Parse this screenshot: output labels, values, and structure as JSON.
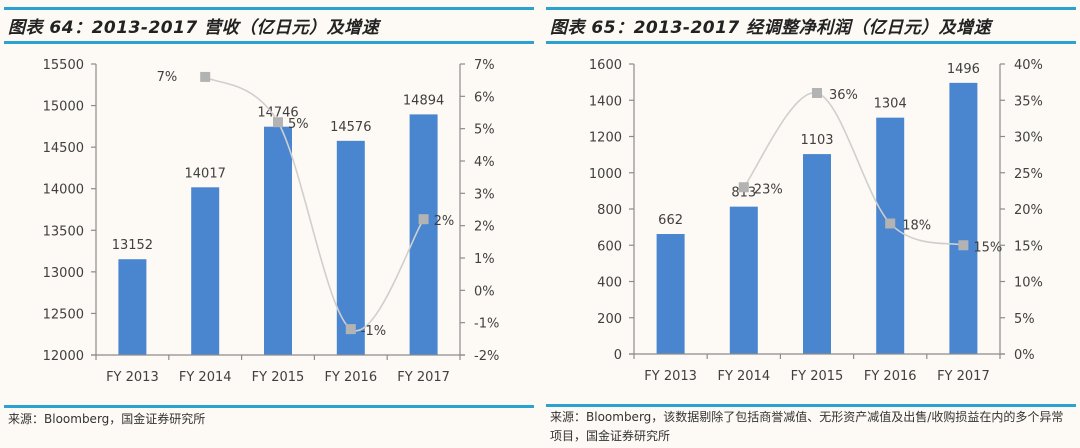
{
  "figures": [
    {
      "title": "图表 64：2013-2017 营收（亿日元）及增速",
      "source": "来源：Bloomberg，国金证券研究所"
    },
    {
      "title": "图表 65：2013-2017 经调整净利润（亿日元）及增速",
      "source": "来源：Bloomberg，该数据剔除了包括商誉减值、无形资产减值及出售/收购损益在内的多个异常项目，国金证券研究所"
    }
  ],
  "colors": {
    "bar": "#4a86d0",
    "line": "#cfcfcf",
    "marker": "#b3b3b3",
    "rule": "#2aa3d0",
    "axis": "#8c8c8c"
  },
  "chart_data": [
    {
      "type": "bar+line",
      "title": "2013-2017 营收（亿日元）及增速",
      "categories": [
        "FY 2013",
        "FY 2014",
        "FY 2015",
        "FY 2016",
        "FY 2017"
      ],
      "series": [
        {
          "name": "营收（亿日元）",
          "type": "bar",
          "axis": "left",
          "values": [
            13152,
            14017,
            14746,
            14576,
            14894
          ],
          "labels": [
            "13152",
            "14017",
            "14746",
            "14576",
            "14894"
          ]
        },
        {
          "name": "增速",
          "type": "line",
          "axis": "right",
          "values": [
            null,
            6.6,
            5.2,
            -1.2,
            2.2
          ],
          "labels": [
            null,
            "7%",
            "5%",
            "-1%",
            "2%"
          ]
        }
      ],
      "left_axis": {
        "ylim": [
          12000,
          15500
        ],
        "ticks": [
          "12000",
          "12500",
          "13000",
          "13500",
          "14000",
          "14500",
          "15000",
          "15500"
        ]
      },
      "right_axis": {
        "ylim": [
          -2,
          7
        ],
        "ticks": [
          "-2%",
          "-1%",
          "0%",
          "1%",
          "2%",
          "3%",
          "4%",
          "5%",
          "6%",
          "7%"
        ]
      },
      "grid": false,
      "legend": null
    },
    {
      "type": "bar+line",
      "title": "2013-2017 经调整净利润（亿日元）及增速",
      "categories": [
        "FY 2013",
        "FY 2014",
        "FY 2015",
        "FY 2016",
        "FY 2017"
      ],
      "series": [
        {
          "name": "经调整净利润（亿日元）",
          "type": "bar",
          "axis": "left",
          "values": [
            662,
            813,
            1103,
            1304,
            1496
          ],
          "labels": [
            "662",
            "813",
            "1103",
            "1304",
            "1496"
          ]
        },
        {
          "name": "增速",
          "type": "line",
          "axis": "right",
          "values": [
            null,
            23,
            36,
            18,
            15
          ],
          "labels": [
            null,
            "23%",
            "36%",
            "18%",
            "15%"
          ]
        }
      ],
      "left_axis": {
        "ylim": [
          0,
          1600
        ],
        "ticks": [
          "0",
          "200",
          "400",
          "600",
          "800",
          "1000",
          "1200",
          "1400",
          "1600"
        ]
      },
      "right_axis": {
        "ylim": [
          0,
          40
        ],
        "ticks": [
          "0%",
          "5%",
          "10%",
          "15%",
          "20%",
          "25%",
          "30%",
          "35%",
          "40%"
        ]
      },
      "grid": false,
      "legend": null
    }
  ]
}
